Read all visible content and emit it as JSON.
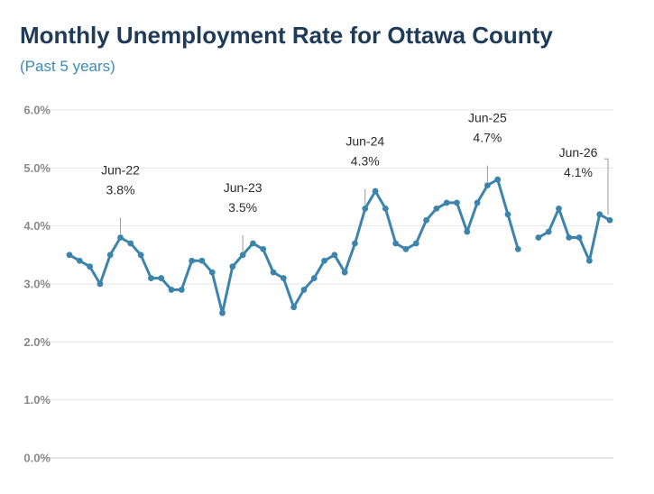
{
  "chart_data": {
    "type": "line",
    "title": "Monthly Unemployment Rate for Ottawa County",
    "subtitle": "(Past 5 years)",
    "y_tick_labels": [
      "0.0%",
      "1.0%",
      "2.0%",
      "3.0%",
      "4.0%",
      "5.0%",
      "6.0%"
    ],
    "ylim": [
      0,
      6
    ],
    "grid": true,
    "legend": "none",
    "line_color": "#3d84ad",
    "series": [
      {
        "values": [
          3.5,
          3.4,
          3.3,
          3.0,
          3.5,
          3.8,
          3.7,
          3.5,
          3.1,
          3.1,
          2.9,
          2.9,
          3.4,
          3.4,
          3.2,
          2.5,
          3.3,
          3.5,
          3.7,
          3.6,
          3.2,
          3.1,
          2.6,
          2.9,
          3.1,
          3.4,
          3.5,
          3.2,
          3.7,
          4.3,
          4.6,
          4.3,
          3.7,
          3.6,
          3.7,
          4.1,
          4.3,
          4.4,
          4.4,
          3.9,
          4.4,
          4.7,
          4.8,
          4.2,
          3.6,
          null,
          3.8,
          3.9,
          4.3,
          3.8,
          3.8,
          3.4,
          4.2,
          4.1
        ]
      }
    ],
    "annotations": [
      {
        "index": 5,
        "label": "Jun-22",
        "value_label": "3.8%"
      },
      {
        "index": 17,
        "label": "Jun-23",
        "value_label": "3.5%"
      },
      {
        "index": 29,
        "label": "Jun-24",
        "value_label": "4.3%"
      },
      {
        "index": 41,
        "label": "Jun-25",
        "value_label": "4.7%"
      },
      {
        "index": 53,
        "label": "Jun-26",
        "value_label": "4.1%"
      }
    ]
  }
}
